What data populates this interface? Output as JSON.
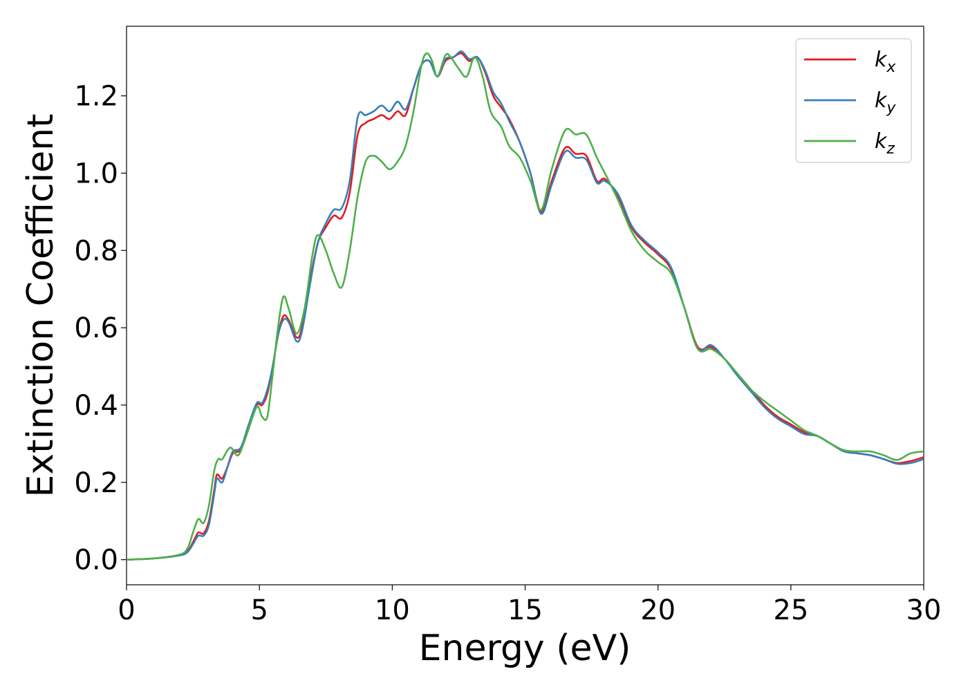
{
  "chart_data": {
    "type": "line",
    "title": "",
    "xlabel": "Energy (eV)",
    "ylabel": "Extinction Coefficient",
    "xlim": [
      0,
      30
    ],
    "ylim": [
      -0.065,
      1.38
    ],
    "xticks": [
      0,
      5,
      10,
      15,
      20,
      25,
      30
    ],
    "yticks": [
      0.0,
      0.2,
      0.4,
      0.6,
      0.8,
      1.0,
      1.2
    ],
    "xtick_labels": [
      "0",
      "5",
      "10",
      "15",
      "20",
      "25",
      "30"
    ],
    "ytick_labels": [
      "0.0",
      "0.2",
      "0.4",
      "0.6",
      "0.8",
      "1.0",
      "1.2"
    ],
    "grid": false,
    "legend_position": "top-right",
    "series": [
      {
        "name": "k_x",
        "label_base": "k",
        "label_sub": "x",
        "color": "#e41a1c",
        "points": [
          [
            0,
            0
          ],
          [
            1,
            0.003
          ],
          [
            2,
            0.012
          ],
          [
            2.3,
            0.022
          ],
          [
            2.5,
            0.045
          ],
          [
            2.7,
            0.07
          ],
          [
            2.9,
            0.068
          ],
          [
            3.1,
            0.1
          ],
          [
            3.3,
            0.18
          ],
          [
            3.4,
            0.22
          ],
          [
            3.6,
            0.21
          ],
          [
            3.8,
            0.24
          ],
          [
            4.0,
            0.275
          ],
          [
            4.3,
            0.285
          ],
          [
            4.6,
            0.34
          ],
          [
            4.9,
            0.4
          ],
          [
            5.1,
            0.4
          ],
          [
            5.3,
            0.43
          ],
          [
            5.5,
            0.5
          ],
          [
            5.7,
            0.58
          ],
          [
            5.9,
            0.63
          ],
          [
            6.1,
            0.62
          ],
          [
            6.4,
            0.575
          ],
          [
            6.6,
            0.6
          ],
          [
            6.9,
            0.72
          ],
          [
            7.2,
            0.82
          ],
          [
            7.5,
            0.86
          ],
          [
            7.8,
            0.89
          ],
          [
            8.1,
            0.885
          ],
          [
            8.4,
            0.95
          ],
          [
            8.7,
            1.1
          ],
          [
            9.0,
            1.13
          ],
          [
            9.3,
            1.14
          ],
          [
            9.6,
            1.15
          ],
          [
            9.9,
            1.14
          ],
          [
            10.2,
            1.16
          ],
          [
            10.5,
            1.15
          ],
          [
            10.8,
            1.22
          ],
          [
            11.1,
            1.28
          ],
          [
            11.4,
            1.29
          ],
          [
            11.7,
            1.25
          ],
          [
            12.0,
            1.29
          ],
          [
            12.3,
            1.3
          ],
          [
            12.6,
            1.31
          ],
          [
            12.9,
            1.29
          ],
          [
            13.2,
            1.3
          ],
          [
            13.5,
            1.26
          ],
          [
            13.8,
            1.2
          ],
          [
            14.1,
            1.17
          ],
          [
            14.4,
            1.14
          ],
          [
            14.8,
            1.08
          ],
          [
            15.2,
            1.0
          ],
          [
            15.6,
            0.9
          ],
          [
            16.0,
            0.98
          ],
          [
            16.5,
            1.065
          ],
          [
            16.9,
            1.05
          ],
          [
            17.3,
            1.045
          ],
          [
            17.7,
            0.98
          ],
          [
            18.0,
            0.985
          ],
          [
            18.5,
            0.94
          ],
          [
            19.0,
            0.86
          ],
          [
            19.5,
            0.82
          ],
          [
            20.0,
            0.79
          ],
          [
            20.5,
            0.75
          ],
          [
            21.0,
            0.65
          ],
          [
            21.5,
            0.55
          ],
          [
            22.0,
            0.55
          ],
          [
            22.5,
            0.52
          ],
          [
            23.0,
            0.48
          ],
          [
            23.5,
            0.44
          ],
          [
            24.0,
            0.4
          ],
          [
            24.5,
            0.37
          ],
          [
            25.0,
            0.35
          ],
          [
            25.5,
            0.33
          ],
          [
            26.0,
            0.32
          ],
          [
            26.5,
            0.3
          ],
          [
            27.0,
            0.28
          ],
          [
            27.5,
            0.275
          ],
          [
            28.0,
            0.27
          ],
          [
            28.5,
            0.26
          ],
          [
            29.0,
            0.25
          ],
          [
            29.5,
            0.255
          ],
          [
            30.0,
            0.265
          ]
        ]
      },
      {
        "name": "k_y",
        "label_base": "k",
        "label_sub": "y",
        "color": "#377eb8",
        "points": [
          [
            0,
            0
          ],
          [
            1,
            0.003
          ],
          [
            2,
            0.011
          ],
          [
            2.3,
            0.02
          ],
          [
            2.5,
            0.04
          ],
          [
            2.7,
            0.062
          ],
          [
            2.9,
            0.062
          ],
          [
            3.1,
            0.09
          ],
          [
            3.3,
            0.17
          ],
          [
            3.4,
            0.21
          ],
          [
            3.6,
            0.2
          ],
          [
            3.8,
            0.24
          ],
          [
            4.0,
            0.28
          ],
          [
            4.3,
            0.29
          ],
          [
            4.6,
            0.35
          ],
          [
            4.9,
            0.405
          ],
          [
            5.1,
            0.405
          ],
          [
            5.3,
            0.44
          ],
          [
            5.5,
            0.5
          ],
          [
            5.7,
            0.58
          ],
          [
            5.9,
            0.62
          ],
          [
            6.1,
            0.615
          ],
          [
            6.4,
            0.565
          ],
          [
            6.6,
            0.59
          ],
          [
            6.9,
            0.71
          ],
          [
            7.2,
            0.82
          ],
          [
            7.5,
            0.87
          ],
          [
            7.8,
            0.905
          ],
          [
            8.1,
            0.91
          ],
          [
            8.4,
            0.98
          ],
          [
            8.7,
            1.145
          ],
          [
            9.0,
            1.15
          ],
          [
            9.3,
            1.16
          ],
          [
            9.6,
            1.175
          ],
          [
            9.9,
            1.16
          ],
          [
            10.2,
            1.185
          ],
          [
            10.5,
            1.165
          ],
          [
            10.8,
            1.22
          ],
          [
            11.1,
            1.28
          ],
          [
            11.4,
            1.29
          ],
          [
            11.7,
            1.25
          ],
          [
            12.0,
            1.295
          ],
          [
            12.3,
            1.3
          ],
          [
            12.6,
            1.315
          ],
          [
            12.9,
            1.295
          ],
          [
            13.2,
            1.3
          ],
          [
            13.5,
            1.265
          ],
          [
            13.8,
            1.21
          ],
          [
            14.1,
            1.18
          ],
          [
            14.4,
            1.135
          ],
          [
            14.8,
            1.08
          ],
          [
            15.2,
            1.0
          ],
          [
            15.6,
            0.895
          ],
          [
            16.0,
            0.97
          ],
          [
            16.5,
            1.055
          ],
          [
            16.9,
            1.04
          ],
          [
            17.3,
            1.035
          ],
          [
            17.7,
            0.975
          ],
          [
            18.0,
            0.98
          ],
          [
            18.5,
            0.945
          ],
          [
            19.0,
            0.865
          ],
          [
            19.5,
            0.825
          ],
          [
            20.0,
            0.795
          ],
          [
            20.5,
            0.755
          ],
          [
            21.0,
            0.65
          ],
          [
            21.5,
            0.545
          ],
          [
            22.0,
            0.555
          ],
          [
            22.5,
            0.52
          ],
          [
            23.0,
            0.475
          ],
          [
            23.5,
            0.435
          ],
          [
            24.0,
            0.395
          ],
          [
            24.5,
            0.365
          ],
          [
            25.0,
            0.345
          ],
          [
            25.5,
            0.325
          ],
          [
            26.0,
            0.32
          ],
          [
            26.5,
            0.3
          ],
          [
            27.0,
            0.28
          ],
          [
            27.5,
            0.275
          ],
          [
            28.0,
            0.27
          ],
          [
            28.5,
            0.26
          ],
          [
            29.0,
            0.248
          ],
          [
            29.5,
            0.25
          ],
          [
            30.0,
            0.26
          ]
        ]
      },
      {
        "name": "k_z",
        "label_base": "k",
        "label_sub": "z",
        "color": "#4daf4a",
        "points": [
          [
            0,
            0
          ],
          [
            1,
            0.003
          ],
          [
            2,
            0.013
          ],
          [
            2.3,
            0.03
          ],
          [
            2.5,
            0.07
          ],
          [
            2.7,
            0.105
          ],
          [
            2.9,
            0.095
          ],
          [
            3.1,
            0.14
          ],
          [
            3.3,
            0.23
          ],
          [
            3.45,
            0.26
          ],
          [
            3.6,
            0.26
          ],
          [
            3.9,
            0.29
          ],
          [
            4.2,
            0.27
          ],
          [
            4.5,
            0.32
          ],
          [
            4.9,
            0.395
          ],
          [
            5.1,
            0.37
          ],
          [
            5.3,
            0.37
          ],
          [
            5.5,
            0.48
          ],
          [
            5.7,
            0.6
          ],
          [
            5.9,
            0.68
          ],
          [
            6.1,
            0.65
          ],
          [
            6.4,
            0.585
          ],
          [
            6.7,
            0.65
          ],
          [
            7.0,
            0.79
          ],
          [
            7.2,
            0.84
          ],
          [
            7.5,
            0.8
          ],
          [
            7.8,
            0.74
          ],
          [
            8.1,
            0.705
          ],
          [
            8.4,
            0.8
          ],
          [
            8.7,
            0.94
          ],
          [
            9.0,
            1.03
          ],
          [
            9.3,
            1.045
          ],
          [
            9.6,
            1.03
          ],
          [
            9.9,
            1.01
          ],
          [
            10.2,
            1.03
          ],
          [
            10.5,
            1.07
          ],
          [
            10.8,
            1.16
          ],
          [
            11.1,
            1.28
          ],
          [
            11.3,
            1.31
          ],
          [
            11.5,
            1.29
          ],
          [
            11.7,
            1.25
          ],
          [
            12.0,
            1.305
          ],
          [
            12.2,
            1.3
          ],
          [
            12.5,
            1.27
          ],
          [
            12.8,
            1.25
          ],
          [
            13.1,
            1.3
          ],
          [
            13.4,
            1.25
          ],
          [
            13.7,
            1.16
          ],
          [
            14.1,
            1.12
          ],
          [
            14.4,
            1.07
          ],
          [
            14.8,
            1.04
          ],
          [
            15.2,
            0.98
          ],
          [
            15.6,
            0.905
          ],
          [
            16.0,
            1.01
          ],
          [
            16.5,
            1.11
          ],
          [
            16.9,
            1.1
          ],
          [
            17.3,
            1.1
          ],
          [
            17.7,
            1.04
          ],
          [
            18.0,
            1.0
          ],
          [
            18.5,
            0.93
          ],
          [
            19.0,
            0.85
          ],
          [
            19.5,
            0.8
          ],
          [
            20.0,
            0.77
          ],
          [
            20.5,
            0.74
          ],
          [
            21.0,
            0.65
          ],
          [
            21.5,
            0.545
          ],
          [
            22.0,
            0.545
          ],
          [
            22.5,
            0.52
          ],
          [
            23.0,
            0.48
          ],
          [
            23.5,
            0.44
          ],
          [
            24.0,
            0.41
          ],
          [
            24.5,
            0.385
          ],
          [
            25.0,
            0.36
          ],
          [
            25.5,
            0.335
          ],
          [
            26.0,
            0.32
          ],
          [
            26.5,
            0.3
          ],
          [
            27.0,
            0.283
          ],
          [
            27.5,
            0.28
          ],
          [
            28.0,
            0.28
          ],
          [
            28.5,
            0.27
          ],
          [
            29.0,
            0.258
          ],
          [
            29.5,
            0.275
          ],
          [
            30.0,
            0.28
          ]
        ]
      }
    ]
  }
}
